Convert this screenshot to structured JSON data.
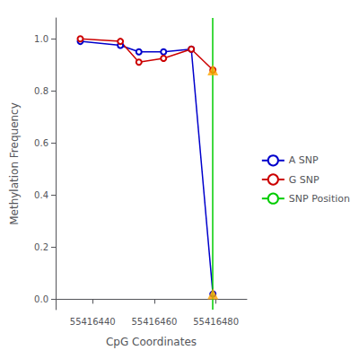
{
  "chart_data": {
    "type": "line",
    "xlabel": "CpG Coordinates",
    "ylabel": "Methylation Frequency",
    "x": [
      55416436,
      55416449,
      55416455,
      55416463,
      55416472,
      55416479
    ],
    "series": [
      {
        "name": "A SNP",
        "color": "#0000CC",
        "marker": "circle",
        "values": [
          0.99,
          0.975,
          0.95,
          0.95,
          0.96,
          0.02
        ]
      },
      {
        "name": "G SNP",
        "color": "#CC0000",
        "marker": "circle",
        "values": [
          1.0,
          0.99,
          0.91,
          0.925,
          0.96,
          0.88
        ]
      },
      {
        "name": "SNP Position",
        "color": "#00CC00",
        "type": "vline",
        "x": [
          55416479
        ]
      },
      {
        "type": "scatter",
        "color": "#FFA500",
        "marker": "triangle",
        "x": [
          55416479,
          55416479
        ],
        "values": [
          0.02,
          0.88
        ]
      }
    ],
    "xlim": [
      55416428,
      55416490
    ],
    "ylim": [
      -0.04,
      1.08
    ],
    "xticks": [
      55416440,
      55416460,
      55416480
    ],
    "yticks": [
      {
        "value": 0,
        "label": "0.0"
      },
      0.2,
      0.4,
      0.6,
      0.8,
      {
        "value": 1,
        "label": "1.0"
      }
    ],
    "grid": false,
    "legend": "center right"
  }
}
